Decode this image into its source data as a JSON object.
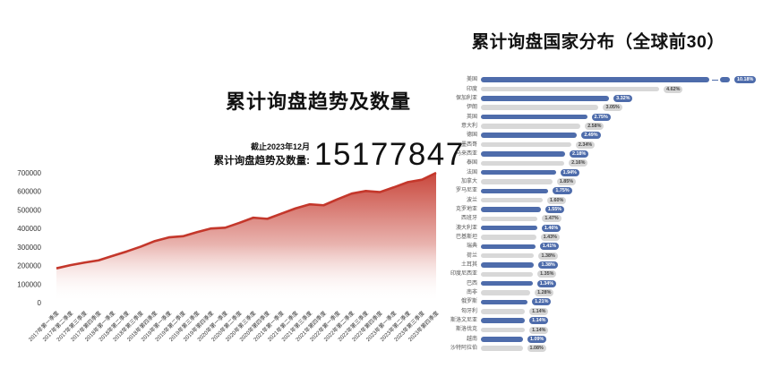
{
  "left_chart": {
    "title": "累计询盘趋势及数量",
    "as_of": "截止2023年12月",
    "stat_label": "累计询盘趋势及数量:",
    "stat_value": "15177847"
  },
  "right_chart": {
    "title": "累计询盘国家分布（全球前30）"
  },
  "colors": {
    "area_line": "#c4372b",
    "area_fill_top": "#c4372b",
    "bar_blue": "#4e6cab",
    "bar_gray": "#d8d8d8",
    "badge_blue_text": "#ffffff",
    "badge_gray_bg": "#d6d6d6",
    "badge_gray_text": "#444444"
  },
  "chart_data": [
    {
      "type": "area",
      "title": "累计询盘趋势及数量",
      "xlabel": "",
      "ylabel": "",
      "ylim": [
        0,
        700000
      ],
      "yticks": [
        0,
        100000,
        200000,
        300000,
        400000,
        500000,
        600000,
        700000
      ],
      "grid": false,
      "legend": "none",
      "x": [
        "2017年第一季度",
        "2017年第二季度",
        "2017年第三季度",
        "2017年第四季度",
        "2018年第一季度",
        "2018年第二季度",
        "2018年第三季度",
        "2018年第四季度",
        "2019年第一季度",
        "2019年第二季度",
        "2019年第三季度",
        "2019年第四季度",
        "2020年第一季度",
        "2020年第二季度",
        "2020年第三季度",
        "2020年第四季度",
        "2021年第一季度",
        "2021年第二季度",
        "2021年第三季度",
        "2021年第四季度",
        "2022年第一季度",
        "2022年第二季度",
        "2022年第三季度",
        "2022年第四季度",
        "2023年第一季度",
        "2023年第二季度",
        "2023年第三季度",
        "2023年第四季度"
      ],
      "values": [
        185000,
        202000,
        216000,
        228000,
        252000,
        276000,
        302000,
        332000,
        352000,
        358000,
        380000,
        400000,
        404000,
        430000,
        458000,
        452000,
        480000,
        508000,
        530000,
        525000,
        558000,
        588000,
        602000,
        596000,
        622000,
        650000,
        663000,
        700000
      ]
    },
    {
      "type": "bar",
      "orientation": "horizontal",
      "title": "累计询盘国家分布（全球前30）",
      "unit": "%",
      "first_bar_broken": true,
      "alternating_colors": true,
      "categories": [
        "美国",
        "印度",
        "保加利亚",
        "伊朗",
        "英国",
        "意大利",
        "德国",
        "墨西哥",
        "马来西亚",
        "泰国",
        "法国",
        "加拿大",
        "罗马尼亚",
        "波兰",
        "克罗地亚",
        "西班牙",
        "澳大利亚",
        "巴基斯坦",
        "瑞典",
        "荷兰",
        "土耳其",
        "印度尼西亚",
        "巴西",
        "南非",
        "俄罗斯",
        "匈牙利",
        "斯洛文尼亚",
        "斯洛伐克",
        "越南",
        "沙特阿拉伯"
      ],
      "values": [
        10.18,
        4.62,
        3.32,
        3.05,
        2.75,
        2.58,
        2.49,
        2.34,
        2.18,
        2.16,
        1.94,
        1.85,
        1.75,
        1.6,
        1.55,
        1.47,
        1.46,
        1.43,
        1.41,
        1.38,
        1.38,
        1.35,
        1.34,
        1.28,
        1.21,
        1.14,
        1.14,
        1.14,
        1.09,
        1.08
      ]
    }
  ]
}
